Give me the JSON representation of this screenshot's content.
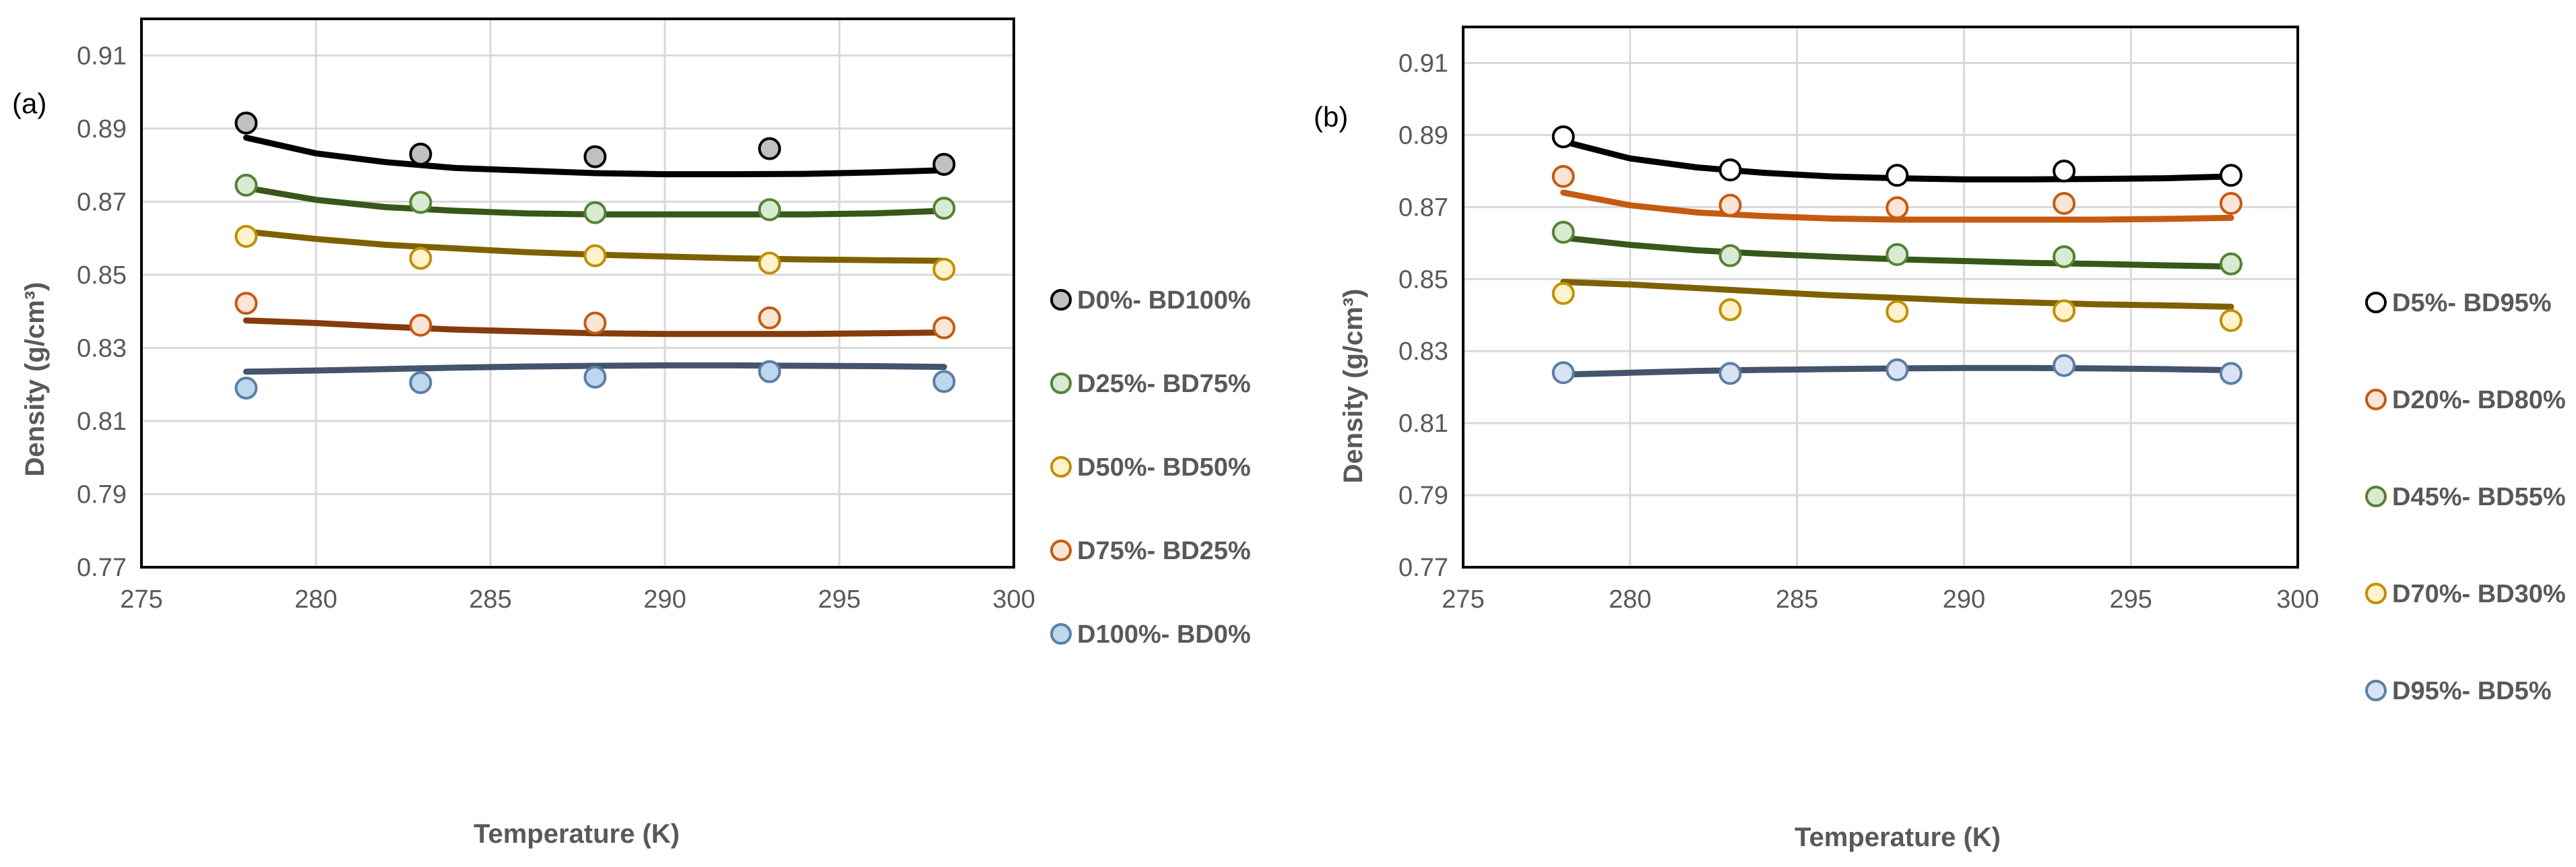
{
  "figure": {
    "description_label": "Density vs temperature for D/BD blends",
    "axis_color": "#000000",
    "grid_color": "#d9d9d9",
    "tick_text_color": "#595959",
    "label_text_color": "#595959"
  },
  "chart_data": [
    {
      "type": "scatter",
      "panel_label": "(a)",
      "xlabel": "Temperature (K)",
      "ylabel": "Density (g/cm³)",
      "xlim": [
        275,
        300
      ],
      "ylim": [
        0.77,
        0.92
      ],
      "xticks": [
        "275",
        "280",
        "285",
        "290",
        "295",
        "300"
      ],
      "xtick_values": [
        275,
        280,
        285,
        290,
        295,
        300
      ],
      "yticks": [
        "0.77",
        "0.79",
        "0.81",
        "0.83",
        "0.85",
        "0.87",
        "0.89",
        "0.91"
      ],
      "ytick_values": [
        0.77,
        0.79,
        0.81,
        0.83,
        0.85,
        0.87,
        0.89,
        0.91
      ],
      "grid": true,
      "legend_position": "right",
      "x": [
        278,
        283,
        288,
        293,
        298
      ],
      "series": [
        {
          "name": "D0%- BD100%",
          "values": [
            0.8915,
            0.883,
            0.8823,
            0.8845,
            0.8802
          ],
          "fit_x": [
            278,
            280,
            282,
            284,
            286,
            288,
            290,
            292,
            294,
            296,
            298
          ],
          "fit": [
            0.8875,
            0.8832,
            0.8808,
            0.8792,
            0.8785,
            0.8778,
            0.8775,
            0.8775,
            0.8776,
            0.878,
            0.8786
          ],
          "marker_fill": "#c0c0c0",
          "marker_edge": "#000000",
          "line_color": "#000000"
        },
        {
          "name": "D25%- BD75%",
          "values": [
            0.8745,
            0.8698,
            0.867,
            0.8678,
            0.8682
          ],
          "fit_x": [
            278,
            280,
            282,
            284,
            286,
            288,
            290,
            292,
            294,
            296,
            298
          ],
          "fit": [
            0.8738,
            0.8705,
            0.8685,
            0.8675,
            0.8668,
            0.8665,
            0.8665,
            0.8665,
            0.8665,
            0.8668,
            0.8675
          ],
          "marker_fill": "#d9ead3",
          "marker_edge": "#548235",
          "line_color": "#38571a"
        },
        {
          "name": "D50%- BD50%",
          "values": [
            0.8605,
            0.8545,
            0.8552,
            0.8532,
            0.8515
          ],
          "fit_x": [
            278,
            280,
            282,
            284,
            286,
            288,
            290,
            292,
            294,
            296,
            298
          ],
          "fit": [
            0.8618,
            0.8598,
            0.8582,
            0.8572,
            0.8562,
            0.8555,
            0.855,
            0.8545,
            0.8542,
            0.854,
            0.8538
          ],
          "marker_fill": "#fff2cc",
          "marker_edge": "#bf9000",
          "line_color": "#7f6000"
        },
        {
          "name": "D75%- BD25%",
          "values": [
            0.8422,
            0.8362,
            0.8368,
            0.8382,
            0.8355
          ],
          "fit_x": [
            278,
            280,
            282,
            284,
            286,
            288,
            290,
            292,
            294,
            296,
            298
          ],
          "fit": [
            0.8375,
            0.8368,
            0.8358,
            0.835,
            0.8345,
            0.834,
            0.8338,
            0.8338,
            0.8338,
            0.834,
            0.8342
          ],
          "marker_fill": "#fbe5d6",
          "marker_edge": "#c55a11",
          "line_color": "#843c0c"
        },
        {
          "name": "D100%- BD0%",
          "values": [
            0.819,
            0.8205,
            0.822,
            0.8235,
            0.8208
          ],
          "fit_x": [
            278,
            280,
            282,
            284,
            286,
            288,
            290,
            292,
            294,
            296,
            298
          ],
          "fit": [
            0.8235,
            0.8238,
            0.8242,
            0.8246,
            0.8249,
            0.8251,
            0.8252,
            0.8252,
            0.8251,
            0.825,
            0.8248
          ],
          "marker_fill": "#bdd7ee",
          "marker_edge": "#5b7fa6",
          "line_color": "#44546a"
        }
      ]
    },
    {
      "type": "scatter",
      "panel_label": "(b)",
      "xlabel": "Temperature (K)",
      "ylabel": "Density (g/cm³)",
      "xlim": [
        275,
        300
      ],
      "ylim": [
        0.77,
        0.92
      ],
      "xticks": [
        "275",
        "280",
        "285",
        "290",
        "295",
        "300"
      ],
      "xtick_values": [
        275,
        280,
        285,
        290,
        295,
        300
      ],
      "yticks": [
        "0.77",
        "0.79",
        "0.81",
        "0.83",
        "0.85",
        "0.87",
        "0.89",
        "0.91"
      ],
      "ytick_values": [
        0.77,
        0.79,
        0.81,
        0.83,
        0.85,
        0.87,
        0.89,
        0.91
      ],
      "grid": true,
      "legend_position": "right",
      "x": [
        278,
        283,
        288,
        293,
        298
      ],
      "series": [
        {
          "name": "D5%- BD95%",
          "values": [
            0.8895,
            0.8803,
            0.8788,
            0.88,
            0.8788
          ],
          "fit_x": [
            278,
            280,
            282,
            284,
            286,
            288,
            290,
            292,
            294,
            296,
            298
          ],
          "fit": [
            0.8882,
            0.8835,
            0.881,
            0.8795,
            0.8785,
            0.878,
            0.8777,
            0.8777,
            0.8778,
            0.878,
            0.8785
          ],
          "marker_fill": "#ffffff",
          "marker_edge": "#000000",
          "line_color": "#000000"
        },
        {
          "name": "D20%- BD80%",
          "values": [
            0.8785,
            0.8705,
            0.8698,
            0.871,
            0.871
          ],
          "fit_x": [
            278,
            280,
            282,
            284,
            286,
            288,
            290,
            292,
            294,
            296,
            298
          ],
          "fit": [
            0.874,
            0.8705,
            0.8685,
            0.8675,
            0.8668,
            0.8665,
            0.8665,
            0.8665,
            0.8665,
            0.8667,
            0.867
          ],
          "marker_fill": "#fbe5d6",
          "marker_edge": "#c55a11",
          "line_color": "#c55a11"
        },
        {
          "name": "D45%- BD55%",
          "values": [
            0.863,
            0.8565,
            0.8568,
            0.8562,
            0.8542
          ],
          "fit_x": [
            278,
            280,
            282,
            284,
            286,
            288,
            290,
            292,
            294,
            296,
            298
          ],
          "fit": [
            0.8615,
            0.8595,
            0.858,
            0.857,
            0.8562,
            0.8555,
            0.855,
            0.8545,
            0.8542,
            0.8538,
            0.8535
          ],
          "marker_fill": "#d9ead3",
          "marker_edge": "#548235",
          "line_color": "#38571a"
        },
        {
          "name": "D70%- BD30%",
          "values": [
            0.846,
            0.8415,
            0.841,
            0.8412,
            0.8385
          ],
          "fit_x": [
            278,
            280,
            282,
            284,
            286,
            288,
            290,
            292,
            294,
            296,
            298
          ],
          "fit": [
            0.8492,
            0.8485,
            0.8475,
            0.8465,
            0.8455,
            0.8448,
            0.844,
            0.8435,
            0.843,
            0.8427,
            0.8423
          ],
          "marker_fill": "#fff2cc",
          "marker_edge": "#bf9000",
          "line_color": "#7f6000"
        },
        {
          "name": "D95%- BD5%",
          "values": [
            0.824,
            0.8238,
            0.8248,
            0.826,
            0.8238
          ],
          "fit_x": [
            278,
            280,
            282,
            284,
            286,
            288,
            290,
            292,
            294,
            296,
            298
          ],
          "fit": [
            0.8235,
            0.824,
            0.8245,
            0.8248,
            0.825,
            0.8252,
            0.8253,
            0.8253,
            0.8252,
            0.825,
            0.8247
          ],
          "marker_fill": "#dae3f3",
          "marker_edge": "#5b7fa6",
          "line_color": "#44546a"
        }
      ]
    }
  ]
}
